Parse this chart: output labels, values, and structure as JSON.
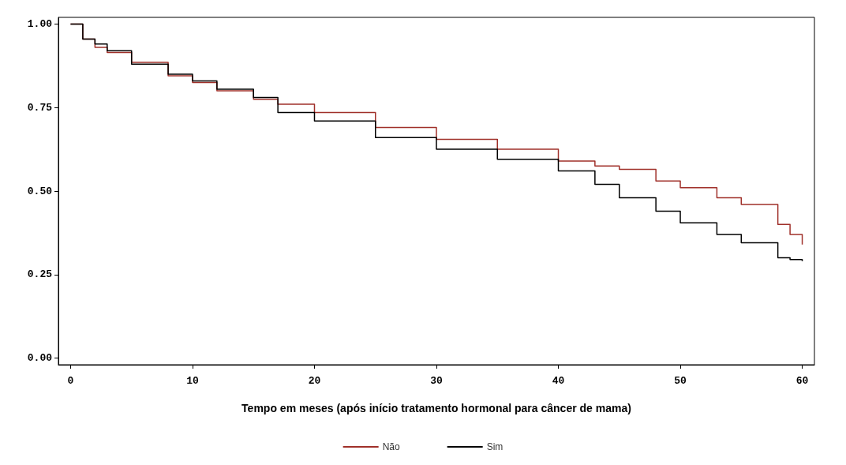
{
  "chart_data": {
    "type": "step",
    "xlabel": "Tempo em meses (após início tratamento hormonal para câncer de mama)",
    "xlim": [
      -1,
      61
    ],
    "ylim": [
      -0.02,
      1.02
    ],
    "xticks": [
      0,
      10,
      20,
      30,
      40,
      50,
      60
    ],
    "yticks": [
      {
        "value": 0,
        "label": "0.00"
      },
      {
        "value": 0.25,
        "label": "0.25"
      },
      {
        "value": 0.5,
        "label": "0.50"
      },
      {
        "value": 0.75,
        "label": "0.75"
      },
      {
        "value": 1,
        "label": "1.00"
      }
    ],
    "grid": false,
    "legend": "bottom",
    "marker": "none",
    "line_style": "solid",
    "series": [
      {
        "name": "Não",
        "color": "#a0302a",
        "x": [
          0,
          1,
          2,
          3,
          5,
          8,
          10,
          12,
          15,
          17,
          20,
          25,
          30,
          35,
          40,
          43,
          45,
          48,
          50,
          53,
          55,
          58,
          59,
          60
        ],
        "values": [
          1,
          0.955,
          0.93,
          0.915,
          0.885,
          0.845,
          0.825,
          0.8,
          0.775,
          0.76,
          0.735,
          0.69,
          0.655,
          0.625,
          0.59,
          0.575,
          0.565,
          0.53,
          0.51,
          0.48,
          0.46,
          0.4,
          0.37,
          0.34
        ]
      },
      {
        "name": "Sim",
        "color": "#000000",
        "x": [
          0,
          1,
          2,
          3,
          5,
          8,
          10,
          12,
          15,
          17,
          20,
          25,
          30,
          35,
          40,
          43,
          45,
          48,
          50,
          53,
          55,
          58,
          59,
          60
        ],
        "values": [
          1,
          0.955,
          0.94,
          0.92,
          0.88,
          0.85,
          0.83,
          0.805,
          0.78,
          0.735,
          0.71,
          0.66,
          0.625,
          0.595,
          0.56,
          0.52,
          0.48,
          0.44,
          0.405,
          0.37,
          0.345,
          0.3,
          0.295,
          0.29
        ]
      }
    ]
  }
}
